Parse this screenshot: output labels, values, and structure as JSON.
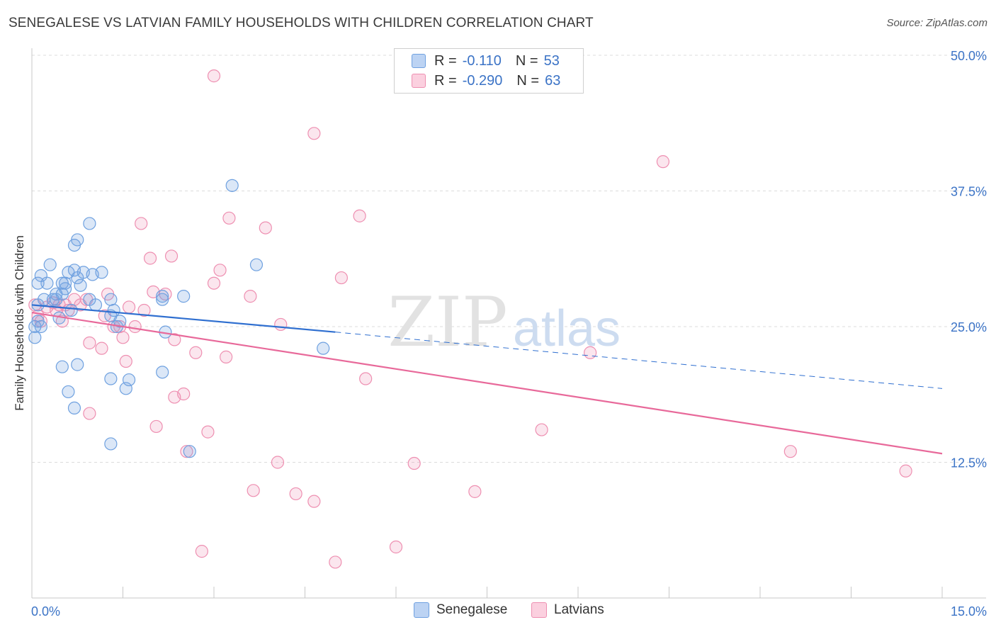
{
  "header": {
    "title": "SENEGALESE VS LATVIAN FAMILY HOUSEHOLDS WITH CHILDREN CORRELATION CHART",
    "source": "Source: ZipAtlas.com"
  },
  "legend": {
    "rows": [
      {
        "r_label": "R =",
        "r_value": "-0.110",
        "n_label": "N =",
        "n_value": "53"
      },
      {
        "r_label": "R =",
        "r_value": "-0.290",
        "n_label": "N =",
        "n_value": "63"
      }
    ]
  },
  "watermark": {
    "zip": "ZIP",
    "atlas": "atlas"
  },
  "chart_data": {
    "type": "scatter",
    "title": "SENEGALESE VS LATVIAN FAMILY HOUSEHOLDS WITH CHILDREN CORRELATION CHART",
    "xlabel": "",
    "ylabel": "Family Households with Children",
    "xlim": [
      0,
      15
    ],
    "ylim": [
      0,
      50
    ],
    "x_tick_labels": [
      "0.0%",
      "15.0%"
    ],
    "y_ticks": [
      12.5,
      25.0,
      37.5,
      50.0
    ],
    "y_tick_labels": [
      "12.5%",
      "25.0%",
      "37.5%",
      "50.0%"
    ],
    "colors": {
      "senegalese": "#6fa1e0",
      "latvians": "#ee8fb1",
      "blue_line": "#2f6fd0",
      "pink_line": "#e8699a",
      "tick_text": "#3b73c6"
    },
    "series": [
      {
        "name": "Senegalese",
        "points": [
          [
            0.05,
            24.0
          ],
          [
            0.05,
            25.0
          ],
          [
            0.1,
            25.5
          ],
          [
            0.1,
            27.0
          ],
          [
            0.1,
            29.0
          ],
          [
            0.15,
            25.0
          ],
          [
            0.15,
            29.7
          ],
          [
            0.2,
            27.5
          ],
          [
            0.25,
            29.0
          ],
          [
            0.3,
            30.7
          ],
          [
            0.35,
            27.5
          ],
          [
            0.4,
            28.0
          ],
          [
            0.4,
            27.5
          ],
          [
            0.5,
            29.0
          ],
          [
            0.5,
            28.0
          ],
          [
            0.55,
            29.0
          ],
          [
            0.55,
            28.5
          ],
          [
            0.6,
            30.0
          ],
          [
            0.65,
            26.5
          ],
          [
            0.7,
            32.5
          ],
          [
            0.7,
            30.2
          ],
          [
            0.75,
            29.5
          ],
          [
            0.75,
            33.0
          ],
          [
            0.8,
            28.8
          ],
          [
            0.85,
            30.0
          ],
          [
            0.95,
            27.5
          ],
          [
            1.05,
            27.0
          ],
          [
            0.95,
            34.5
          ],
          [
            1.0,
            29.8
          ],
          [
            1.15,
            30.0
          ],
          [
            1.3,
            27.5
          ],
          [
            1.3,
            26.0
          ],
          [
            1.35,
            26.5
          ],
          [
            1.4,
            25.0
          ],
          [
            1.45,
            25.5
          ],
          [
            2.15,
            27.5
          ],
          [
            2.15,
            27.8
          ],
          [
            2.2,
            24.5
          ],
          [
            2.5,
            27.8
          ],
          [
            3.3,
            38.0
          ],
          [
            3.7,
            30.7
          ],
          [
            4.8,
            23.0
          ],
          [
            0.5,
            21.3
          ],
          [
            0.75,
            21.5
          ],
          [
            0.6,
            19.0
          ],
          [
            0.7,
            17.5
          ],
          [
            1.3,
            20.2
          ],
          [
            1.55,
            19.3
          ],
          [
            1.6,
            20.1
          ],
          [
            2.15,
            20.8
          ],
          [
            1.3,
            14.2
          ],
          [
            2.6,
            13.5
          ],
          [
            0.45,
            25.8
          ]
        ]
      },
      {
        "name": "Latvians",
        "points": [
          [
            0.05,
            27.0
          ],
          [
            0.1,
            26.0
          ],
          [
            0.15,
            25.5
          ],
          [
            0.25,
            26.8
          ],
          [
            0.35,
            27.2
          ],
          [
            0.4,
            26.5
          ],
          [
            0.45,
            27.0
          ],
          [
            0.5,
            25.5
          ],
          [
            0.55,
            27.0
          ],
          [
            0.6,
            26.5
          ],
          [
            0.7,
            27.5
          ],
          [
            0.8,
            27.0
          ],
          [
            0.9,
            27.5
          ],
          [
            0.95,
            17.0
          ],
          [
            0.95,
            23.5
          ],
          [
            1.15,
            23.0
          ],
          [
            1.2,
            26.0
          ],
          [
            1.25,
            28.0
          ],
          [
            1.35,
            25.0
          ],
          [
            1.45,
            25.0
          ],
          [
            1.5,
            24.0
          ],
          [
            1.55,
            21.8
          ],
          [
            1.6,
            26.8
          ],
          [
            1.7,
            25.0
          ],
          [
            1.8,
            34.5
          ],
          [
            1.85,
            26.5
          ],
          [
            1.95,
            31.3
          ],
          [
            2.0,
            28.2
          ],
          [
            2.05,
            15.8
          ],
          [
            2.2,
            28.0
          ],
          [
            2.3,
            31.5
          ],
          [
            2.35,
            23.8
          ],
          [
            2.35,
            18.5
          ],
          [
            2.5,
            18.8
          ],
          [
            2.55,
            13.5
          ],
          [
            2.7,
            22.6
          ],
          [
            2.8,
            4.3
          ],
          [
            2.9,
            15.3
          ],
          [
            3.0,
            29.0
          ],
          [
            3.1,
            30.2
          ],
          [
            3.2,
            22.2
          ],
          [
            3.25,
            35.0
          ],
          [
            3.6,
            27.8
          ],
          [
            3.65,
            9.9
          ],
          [
            3.85,
            34.1
          ],
          [
            4.05,
            12.5
          ],
          [
            4.1,
            25.2
          ],
          [
            4.35,
            9.6
          ],
          [
            4.65,
            8.9
          ],
          [
            4.65,
            42.8
          ],
          [
            5.0,
            3.3
          ],
          [
            5.1,
            29.5
          ],
          [
            5.4,
            35.2
          ],
          [
            5.5,
            20.2
          ],
          [
            6.0,
            4.7
          ],
          [
            6.3,
            12.4
          ],
          [
            7.3,
            9.8
          ],
          [
            8.4,
            15.5
          ],
          [
            9.2,
            22.6
          ],
          [
            10.4,
            40.2
          ],
          [
            12.5,
            13.5
          ],
          [
            14.4,
            11.7
          ],
          [
            3.0,
            48.1
          ]
        ]
      }
    ],
    "trend_lines": [
      {
        "name": "Senegalese",
        "x_start": 0,
        "y_start": 27.0,
        "x_solid_end": 5.0,
        "y_solid_end": 24.5,
        "x_end": 15.0,
        "y_end": 19.3
      },
      {
        "name": "Latvians",
        "x_start": 0,
        "y_start": 26.3,
        "x_end": 15.0,
        "y_end": 13.3
      }
    ],
    "bottom_legend": [
      "Senegalese",
      "Latvians"
    ]
  }
}
